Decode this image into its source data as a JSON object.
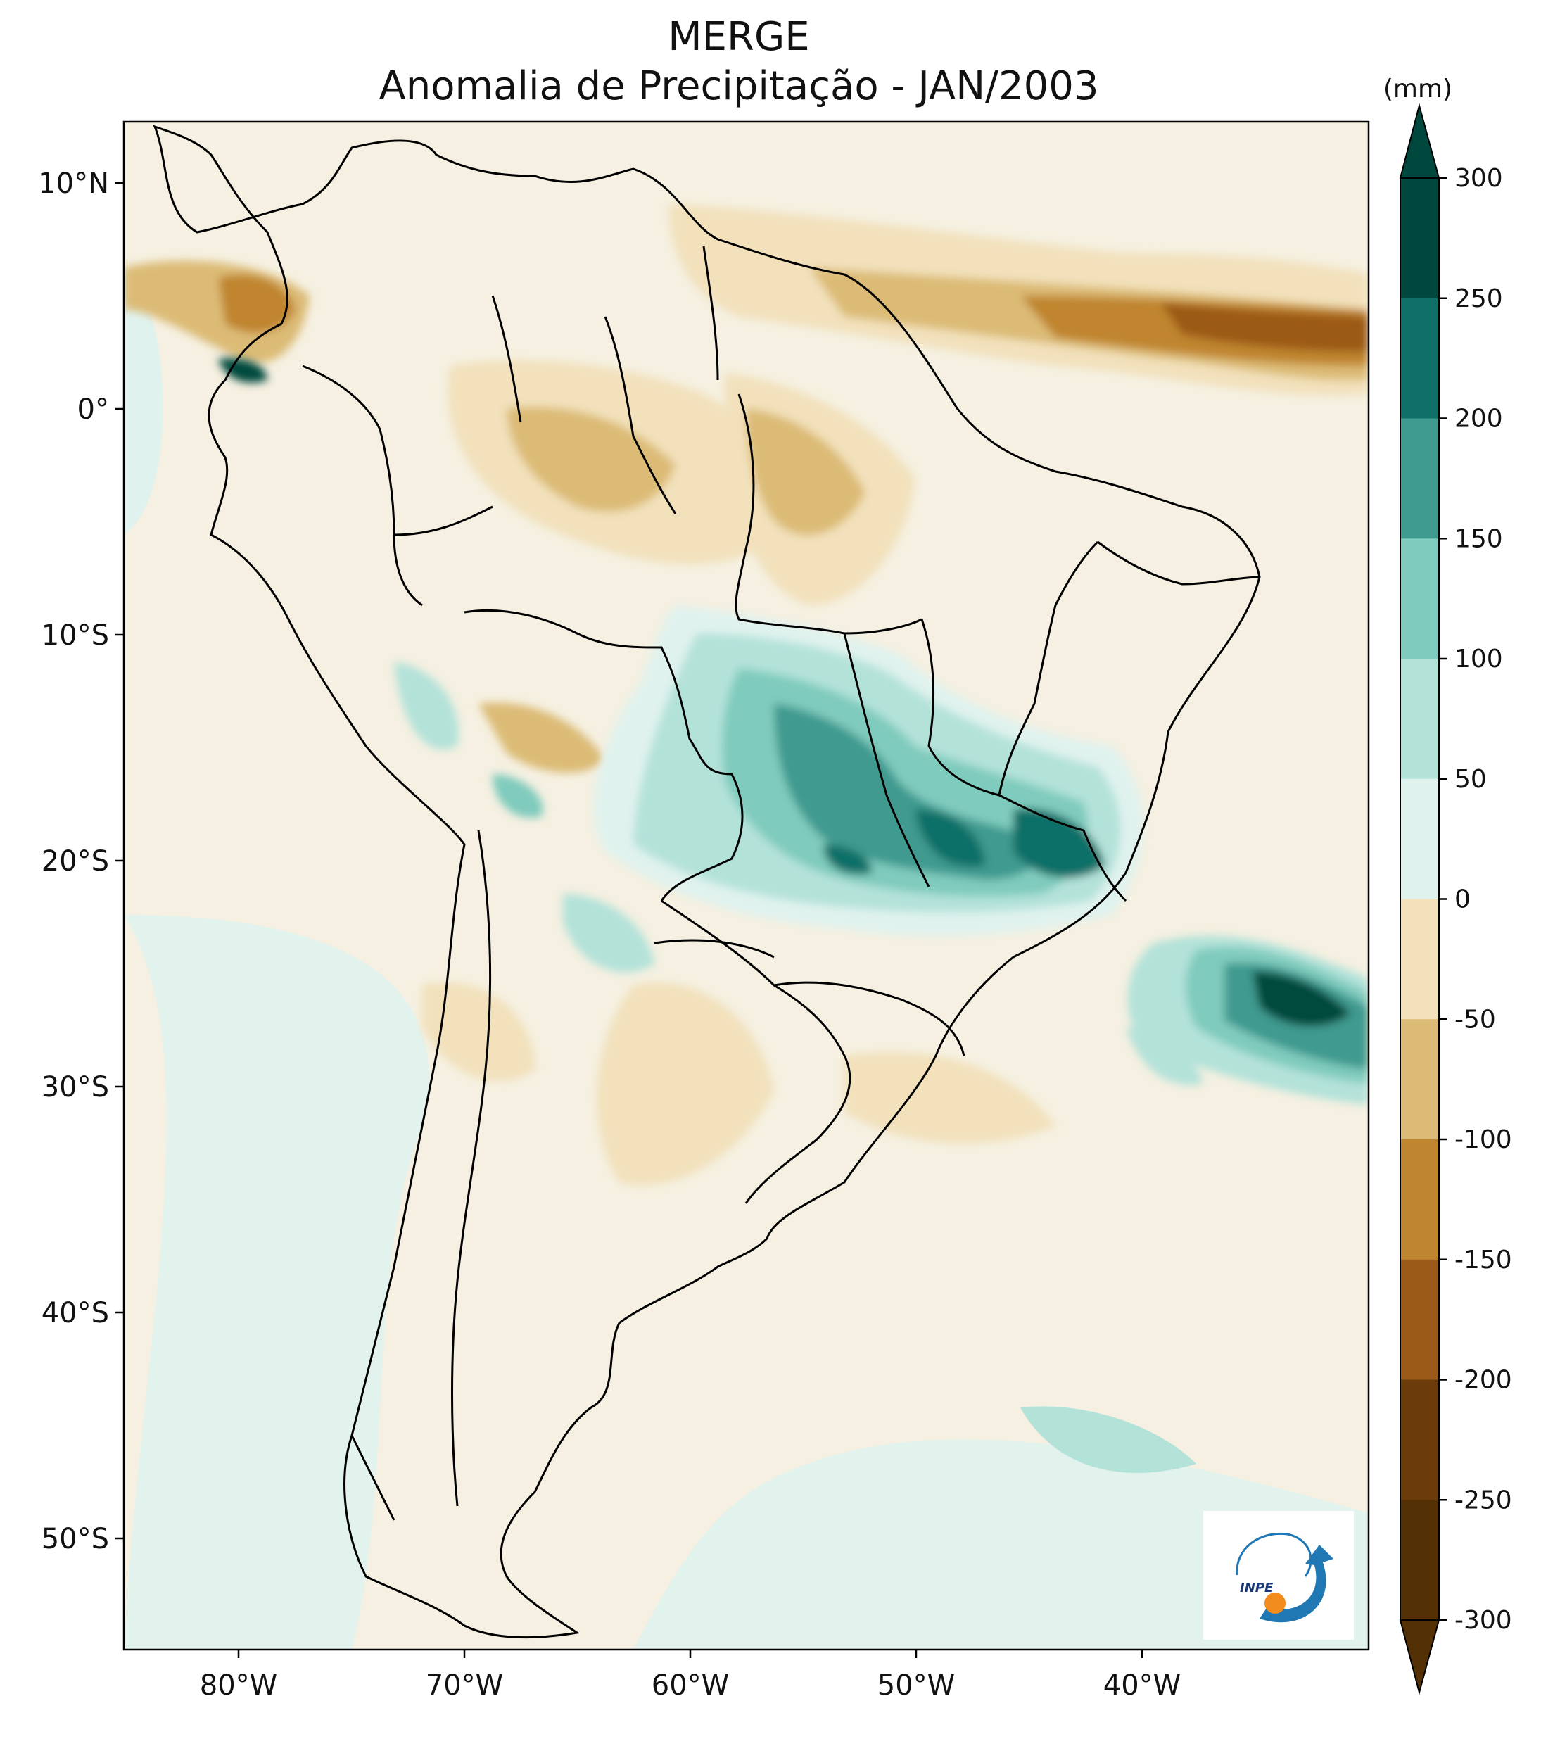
{
  "title": "MERGE",
  "subtitle": "Anomalia de Precipitação - JAN/2003",
  "colorbar": {
    "unit": "(mm)",
    "ticks": [
      "300",
      "250",
      "200",
      "150",
      "100",
      "50",
      "0",
      "-50",
      "-100",
      "-150",
      "-200",
      "-250",
      "-300"
    ],
    "colors": [
      "#00483d",
      "#0e7067",
      "#3f9a8f",
      "#7fcbbd",
      "#b3e2d9",
      "#e0f2ee",
      "#f5f0e1",
      "#f2e1bb",
      "#dcbb76",
      "#c0852f",
      "#9b5a17",
      "#6b3c0a",
      "#543005"
    ]
  },
  "axes": {
    "lon_labels": [
      "80°W",
      "70°W",
      "60°W",
      "50°W",
      "40°W"
    ],
    "lat_labels": [
      "10°N",
      "0°",
      "10°S",
      "20°S",
      "30°S",
      "40°S",
      "50°S"
    ]
  },
  "logo": {
    "text": "INPE"
  }
}
